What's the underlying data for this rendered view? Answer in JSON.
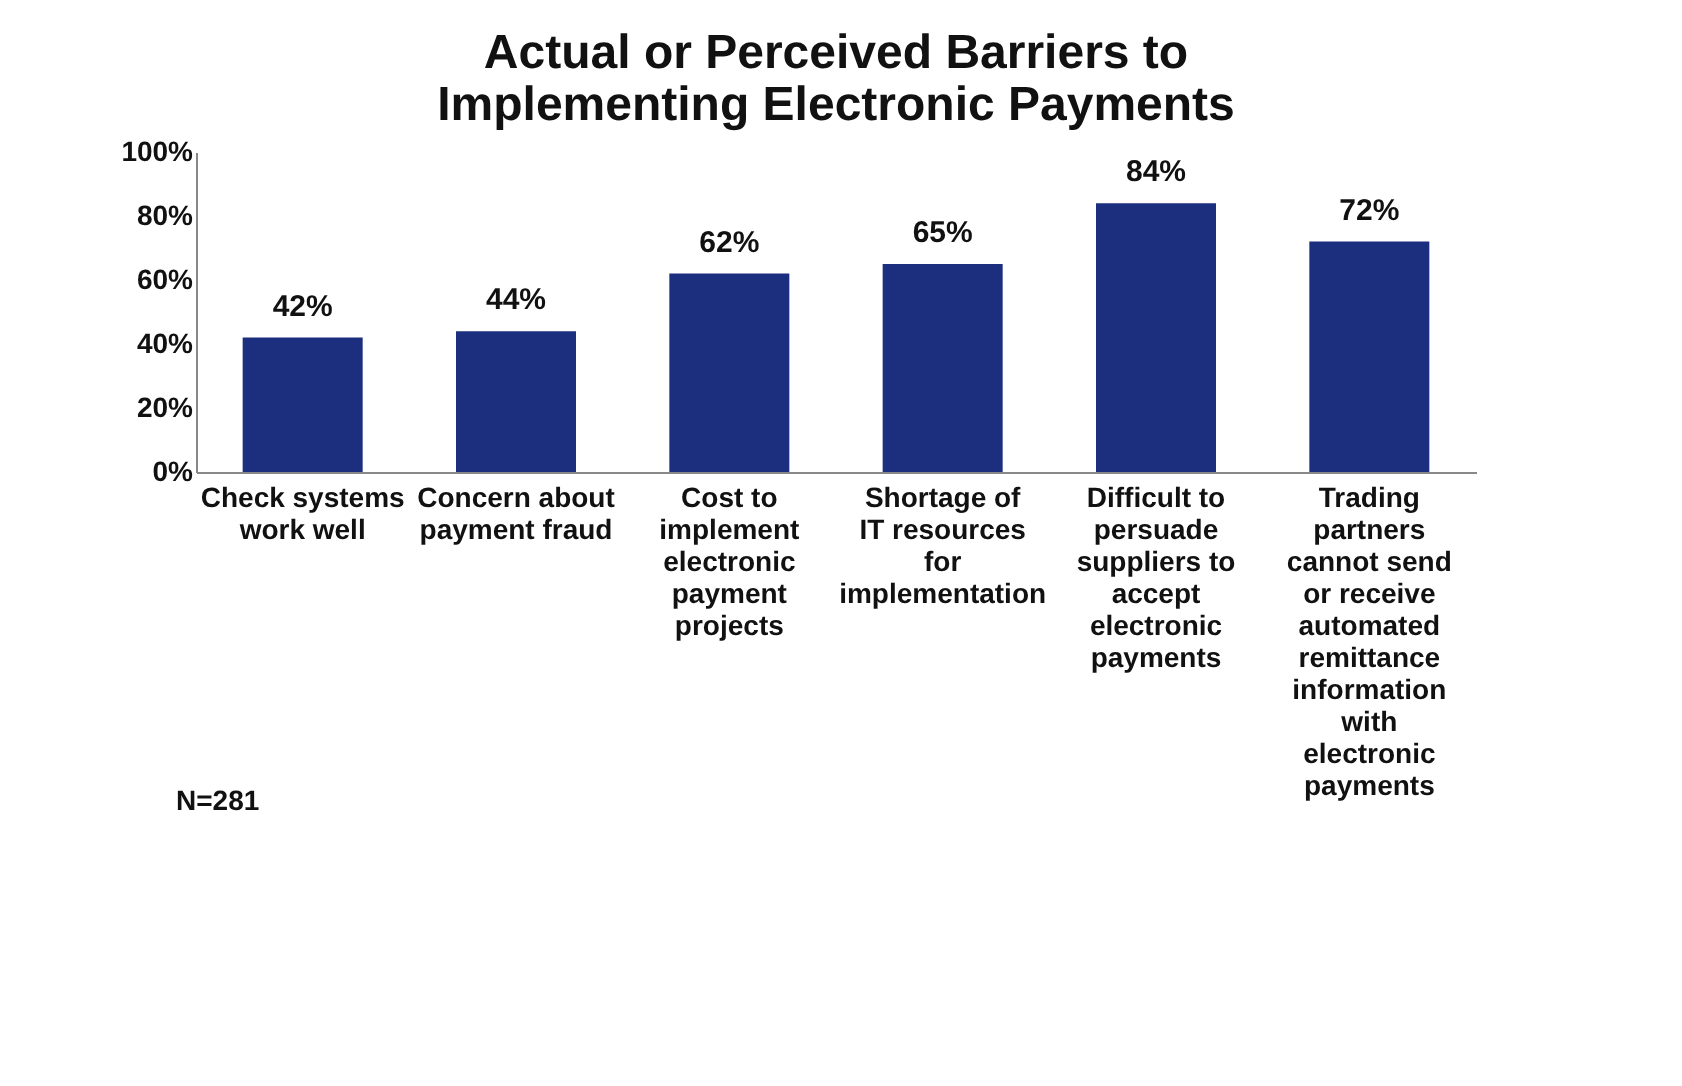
{
  "chart_data": {
    "type": "bar",
    "title": "Actual or Perceived Barriers to Implementing Electronic Payments",
    "categories": [
      "Check systems work well",
      "Concern about payment fraud",
      "Cost to implement electronic payment projects",
      "Shortage of IT resources for implementation",
      "Difficult to persuade suppliers to accept electronic payments",
      "Trading partners cannot send or receive automated remittance information with electronic payments"
    ],
    "values": [
      42,
      44,
      62,
      65,
      84,
      72
    ],
    "value_labels": [
      "42%",
      "44%",
      "62%",
      "65%",
      "84%",
      "72%"
    ],
    "color": "#1b2f7e",
    "ylim": [
      0,
      100
    ],
    "yticks": [
      {
        "value": 0,
        "label": "0%"
      },
      {
        "value": 20,
        "label": "20%"
      },
      {
        "value": 40,
        "label": "40%"
      },
      {
        "value": 60,
        "label": "60%"
      },
      {
        "value": 80,
        "label": "80%"
      },
      {
        "value": 100,
        "label": "100%"
      }
    ],
    "grid": false,
    "annotations": [
      "N=281"
    ]
  }
}
